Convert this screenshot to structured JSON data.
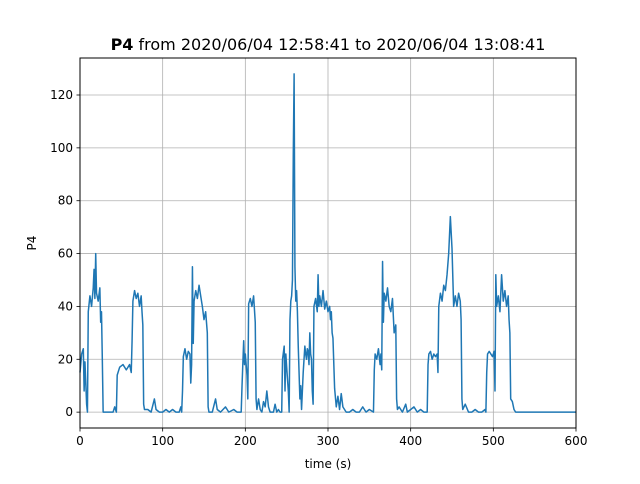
{
  "chart_data": {
    "type": "line",
    "title_bold": "P4",
    "title_rest": " from 2020/06/04 12:58:41 to 2020/06/04 13:08:41",
    "xlabel": "time (s)",
    "ylabel": "P4",
    "xlim": [
      0,
      600
    ],
    "ylim": [
      -6,
      134
    ],
    "xticks": [
      0,
      100,
      200,
      300,
      400,
      500,
      600
    ],
    "yticks": [
      0,
      20,
      40,
      60,
      80,
      100,
      120
    ],
    "grid": true,
    "colors": {
      "line": "#1f77b4"
    },
    "series": [
      {
        "values": [
          [
            0,
            15
          ],
          [
            2,
            22
          ],
          [
            4,
            24
          ],
          [
            5,
            8
          ],
          [
            6,
            19
          ],
          [
            8,
            3
          ],
          [
            9,
            0
          ],
          [
            10,
            38
          ],
          [
            12,
            44
          ],
          [
            14,
            40
          ],
          [
            16,
            47
          ],
          [
            17,
            54
          ],
          [
            18,
            43
          ],
          [
            19,
            60
          ],
          [
            20,
            45
          ],
          [
            22,
            42
          ],
          [
            24,
            47
          ],
          [
            25,
            34
          ],
          [
            26,
            38
          ],
          [
            27,
            20
          ],
          [
            28,
            0
          ],
          [
            30,
            0
          ],
          [
            35,
            0
          ],
          [
            40,
            0
          ],
          [
            42,
            2
          ],
          [
            44,
            0
          ],
          [
            45,
            14
          ],
          [
            48,
            17
          ],
          [
            52,
            18
          ],
          [
            56,
            16
          ],
          [
            60,
            18
          ],
          [
            62,
            15
          ],
          [
            63,
            27
          ],
          [
            64,
            42
          ],
          [
            66,
            46
          ],
          [
            68,
            43
          ],
          [
            70,
            45
          ],
          [
            72,
            40
          ],
          [
            74,
            44
          ],
          [
            75,
            38
          ],
          [
            76,
            33
          ],
          [
            77,
            3
          ],
          [
            78,
            1
          ],
          [
            82,
            1
          ],
          [
            86,
            0
          ],
          [
            90,
            5
          ],
          [
            92,
            1
          ],
          [
            96,
            0
          ],
          [
            100,
            0
          ],
          [
            104,
            1
          ],
          [
            108,
            0
          ],
          [
            112,
            1
          ],
          [
            116,
            0
          ],
          [
            120,
            0
          ],
          [
            122,
            2
          ],
          [
            123,
            0
          ],
          [
            124,
            8
          ],
          [
            125,
            21
          ],
          [
            127,
            24
          ],
          [
            129,
            20
          ],
          [
            131,
            23
          ],
          [
            133,
            22
          ],
          [
            134,
            11
          ],
          [
            135,
            18
          ],
          [
            136,
            55
          ],
          [
            137,
            26
          ],
          [
            138,
            42
          ],
          [
            140,
            46
          ],
          [
            142,
            43
          ],
          [
            144,
            48
          ],
          [
            146,
            44
          ],
          [
            148,
            40
          ],
          [
            150,
            35
          ],
          [
            152,
            38
          ],
          [
            154,
            30
          ],
          [
            155,
            2
          ],
          [
            156,
            0
          ],
          [
            160,
            0
          ],
          [
            164,
            5
          ],
          [
            166,
            1
          ],
          [
            170,
            0
          ],
          [
            176,
            2
          ],
          [
            180,
            0
          ],
          [
            186,
            1
          ],
          [
            190,
            0
          ],
          [
            195,
            0
          ],
          [
            196,
            10
          ],
          [
            198,
            27
          ],
          [
            199,
            18
          ],
          [
            200,
            22
          ],
          [
            202,
            14
          ],
          [
            203,
            5
          ],
          [
            204,
            41
          ],
          [
            206,
            43
          ],
          [
            208,
            40
          ],
          [
            210,
            44
          ],
          [
            212,
            34
          ],
          [
            213,
            5
          ],
          [
            214,
            1
          ],
          [
            216,
            5
          ],
          [
            218,
            1
          ],
          [
            220,
            0
          ],
          [
            222,
            4
          ],
          [
            224,
            2
          ],
          [
            226,
            8
          ],
          [
            228,
            2
          ],
          [
            230,
            0
          ],
          [
            234,
            0
          ],
          [
            236,
            3
          ],
          [
            238,
            0
          ],
          [
            240,
            1
          ],
          [
            242,
            0
          ],
          [
            244,
            0
          ],
          [
            245,
            20
          ],
          [
            247,
            25
          ],
          [
            248,
            8
          ],
          [
            249,
            22
          ],
          [
            250,
            17
          ],
          [
            252,
            8
          ],
          [
            253,
            0
          ],
          [
            254,
            35
          ],
          [
            255,
            42
          ],
          [
            256,
            44
          ],
          [
            257,
            50
          ],
          [
            258,
            97
          ],
          [
            259,
            128
          ],
          [
            260,
            55
          ],
          [
            261,
            42
          ],
          [
            262,
            46
          ],
          [
            263,
            38
          ],
          [
            264,
            25
          ],
          [
            265,
            15
          ],
          [
            266,
            5
          ],
          [
            267,
            10
          ],
          [
            268,
            1
          ],
          [
            270,
            15
          ],
          [
            272,
            25
          ],
          [
            273,
            22
          ],
          [
            274,
            20
          ],
          [
            275,
            24
          ],
          [
            276,
            23
          ],
          [
            277,
            18
          ],
          [
            278,
            30
          ],
          [
            279,
            22
          ],
          [
            280,
            20
          ],
          [
            281,
            8
          ],
          [
            282,
            3
          ],
          [
            283,
            40
          ],
          [
            285,
            43
          ],
          [
            287,
            38
          ],
          [
            288,
            52
          ],
          [
            289,
            40
          ],
          [
            290,
            44
          ],
          [
            292,
            40
          ],
          [
            294,
            46
          ],
          [
            296,
            39
          ],
          [
            298,
            42
          ],
          [
            300,
            38
          ],
          [
            302,
            40
          ],
          [
            303,
            35
          ],
          [
            304,
            38
          ],
          [
            305,
            30
          ],
          [
            306,
            28
          ],
          [
            308,
            9
          ],
          [
            310,
            2
          ],
          [
            312,
            6
          ],
          [
            314,
            1
          ],
          [
            316,
            7
          ],
          [
            318,
            2
          ],
          [
            320,
            1
          ],
          [
            322,
            0
          ],
          [
            326,
            0
          ],
          [
            330,
            1
          ],
          [
            334,
            0
          ],
          [
            338,
            0
          ],
          [
            342,
            2
          ],
          [
            346,
            0
          ],
          [
            350,
            1
          ],
          [
            355,
            0
          ],
          [
            356,
            16
          ],
          [
            357,
            22
          ],
          [
            359,
            20
          ],
          [
            361,
            24
          ],
          [
            363,
            18
          ],
          [
            364,
            22
          ],
          [
            365,
            16
          ],
          [
            366,
            57
          ],
          [
            367,
            34
          ],
          [
            368,
            45
          ],
          [
            370,
            42
          ],
          [
            372,
            47
          ],
          [
            374,
            40
          ],
          [
            376,
            38
          ],
          [
            378,
            43
          ],
          [
            380,
            30
          ],
          [
            382,
            33
          ],
          [
            383,
            5
          ],
          [
            384,
            1
          ],
          [
            386,
            2
          ],
          [
            390,
            0
          ],
          [
            394,
            3
          ],
          [
            396,
            0
          ],
          [
            400,
            1
          ],
          [
            404,
            2
          ],
          [
            408,
            0
          ],
          [
            412,
            1
          ],
          [
            416,
            0
          ],
          [
            420,
            0
          ],
          [
            421,
            18
          ],
          [
            422,
            22
          ],
          [
            424,
            23
          ],
          [
            426,
            20
          ],
          [
            428,
            22
          ],
          [
            430,
            21
          ],
          [
            432,
            22
          ],
          [
            433,
            15
          ],
          [
            434,
            40
          ],
          [
            436,
            45
          ],
          [
            438,
            42
          ],
          [
            440,
            48
          ],
          [
            442,
            46
          ],
          [
            444,
            52
          ],
          [
            446,
            60
          ],
          [
            448,
            74
          ],
          [
            450,
            62
          ],
          [
            452,
            40
          ],
          [
            454,
            44
          ],
          [
            456,
            40
          ],
          [
            458,
            45
          ],
          [
            460,
            42
          ],
          [
            461,
            35
          ],
          [
            462,
            5
          ],
          [
            463,
            1
          ],
          [
            466,
            3
          ],
          [
            470,
            0
          ],
          [
            474,
            0
          ],
          [
            478,
            1
          ],
          [
            482,
            0
          ],
          [
            486,
            0
          ],
          [
            490,
            1
          ],
          [
            491,
            0
          ],
          [
            492,
            15
          ],
          [
            493,
            22
          ],
          [
            495,
            23
          ],
          [
            497,
            22
          ],
          [
            499,
            21
          ],
          [
            501,
            23
          ],
          [
            502,
            8
          ],
          [
            503,
            52
          ],
          [
            504,
            40
          ],
          [
            506,
            44
          ],
          [
            508,
            38
          ],
          [
            510,
            52
          ],
          [
            512,
            42
          ],
          [
            514,
            46
          ],
          [
            516,
            40
          ],
          [
            518,
            44
          ],
          [
            519,
            35
          ],
          [
            520,
            30
          ],
          [
            521,
            5
          ],
          [
            523,
            4
          ],
          [
            525,
            1
          ],
          [
            527,
            0
          ],
          [
            530,
            0
          ],
          [
            540,
            0
          ],
          [
            550,
            0
          ],
          [
            560,
            0
          ],
          [
            570,
            0
          ],
          [
            580,
            0
          ],
          [
            590,
            0
          ],
          [
            600,
            0
          ]
        ]
      }
    ]
  }
}
